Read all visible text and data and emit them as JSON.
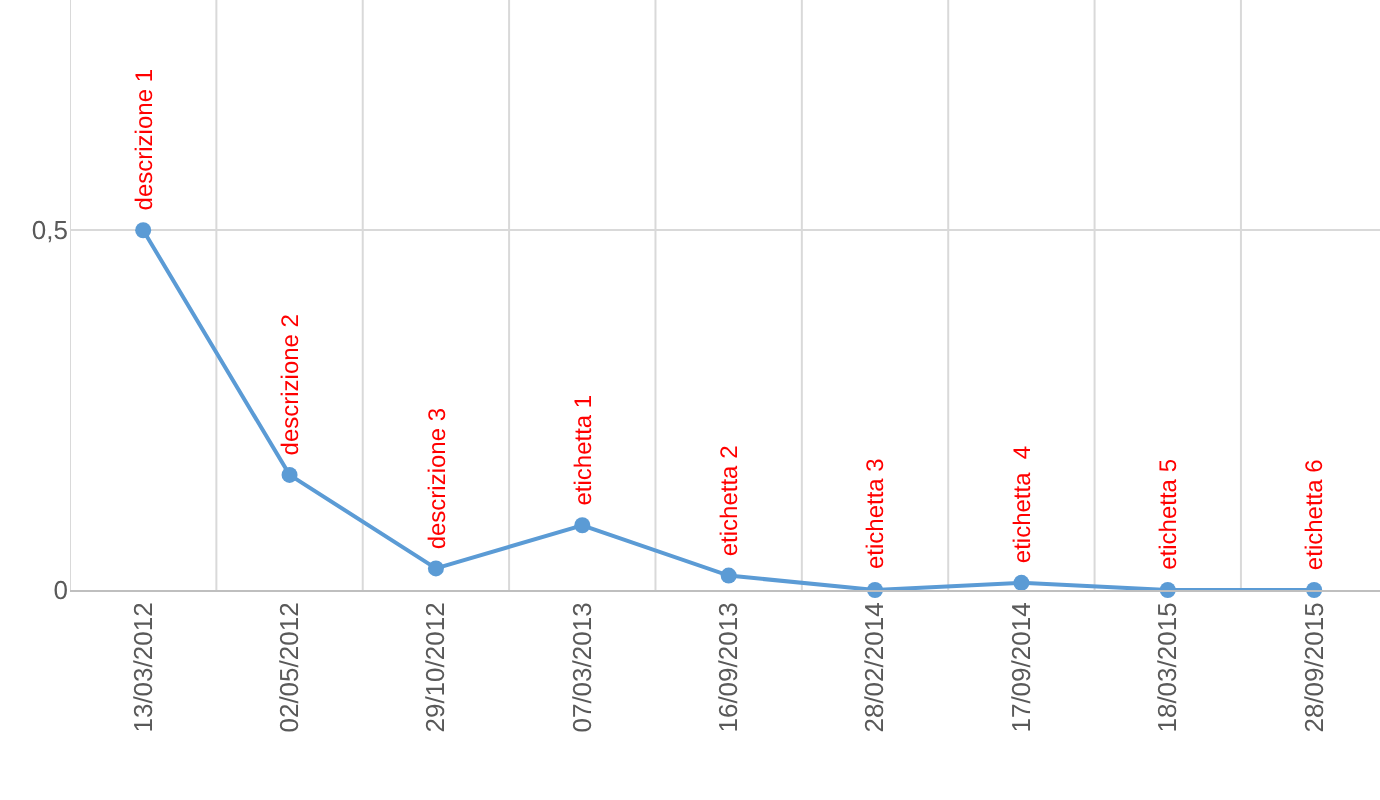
{
  "chart_data": {
    "type": "line",
    "categories": [
      "13/03/2012",
      "02/05/2012",
      "29/10/2012",
      "07/03/2013",
      "16/09/2013",
      "28/02/2014",
      "17/09/2014",
      "18/03/2015",
      "28/09/2015"
    ],
    "series": [
      {
        "color": "#5b9bd5",
        "values": [
          0.5,
          0.16,
          0.03,
          0.09,
          0.02,
          0,
          0.01,
          0,
          0
        ],
        "value_labels": [
          "descrizione 1",
          "descrizione 2",
          "descrizione 3",
          "etichetta 1",
          "etichetta 2",
          "etichetta 3",
          "etichetta  4",
          "etichetta 5",
          "etichetta 6"
        ]
      }
    ],
    "ylim": [
      0,
      0.82
    ],
    "yticks": [
      0,
      {
        "value": 0.5,
        "label": "0,5"
      }
    ],
    "grid": true,
    "marker": "circle",
    "line_style": "solid"
  }
}
